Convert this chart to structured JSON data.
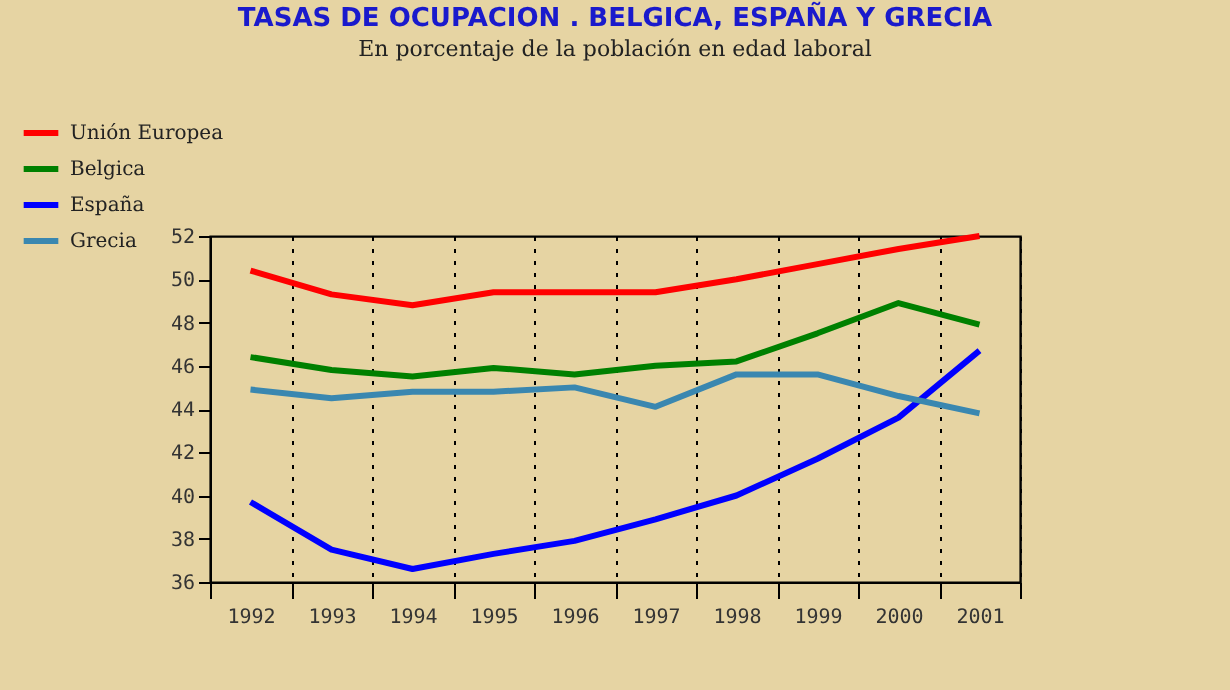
{
  "chart_data": {
    "type": "line",
    "title": "TASAS DE OCUPACION .   BELGICA, ESPAÑA Y GRECIA",
    "subtitle": "En porcentaje de la población en edad laboral",
    "categories": [
      "1992",
      "1993",
      "1994",
      "1995",
      "1996",
      "1997",
      "1998",
      "1999",
      "2000",
      "2001"
    ],
    "series": [
      {
        "name": "Unión Europea",
        "color": "#ff0000",
        "values": [
          50.4,
          49.3,
          48.8,
          49.4,
          49.4,
          49.4,
          50.0,
          50.7,
          51.4,
          52.0
        ]
      },
      {
        "name": "Belgica",
        "color": "#008000",
        "values": [
          46.4,
          45.8,
          45.5,
          45.9,
          45.6,
          46.0,
          46.2,
          47.5,
          48.9,
          47.9
        ]
      },
      {
        "name": "España",
        "color": "#0000ff",
        "values": [
          39.7,
          37.5,
          36.6,
          37.3,
          37.9,
          38.9,
          40.0,
          41.7,
          43.6,
          46.7
        ]
      },
      {
        "name": "Grecia",
        "color": "#3a87b0",
        "values": [
          44.9,
          44.5,
          44.8,
          44.8,
          45.0,
          44.1,
          45.6,
          45.6,
          44.6,
          43.8
        ]
      }
    ],
    "ylim": [
      36,
      52
    ],
    "yticks": [
      36,
      38,
      40,
      42,
      44,
      46,
      48,
      50,
      52
    ],
    "grid": "x",
    "legend": "top left"
  }
}
